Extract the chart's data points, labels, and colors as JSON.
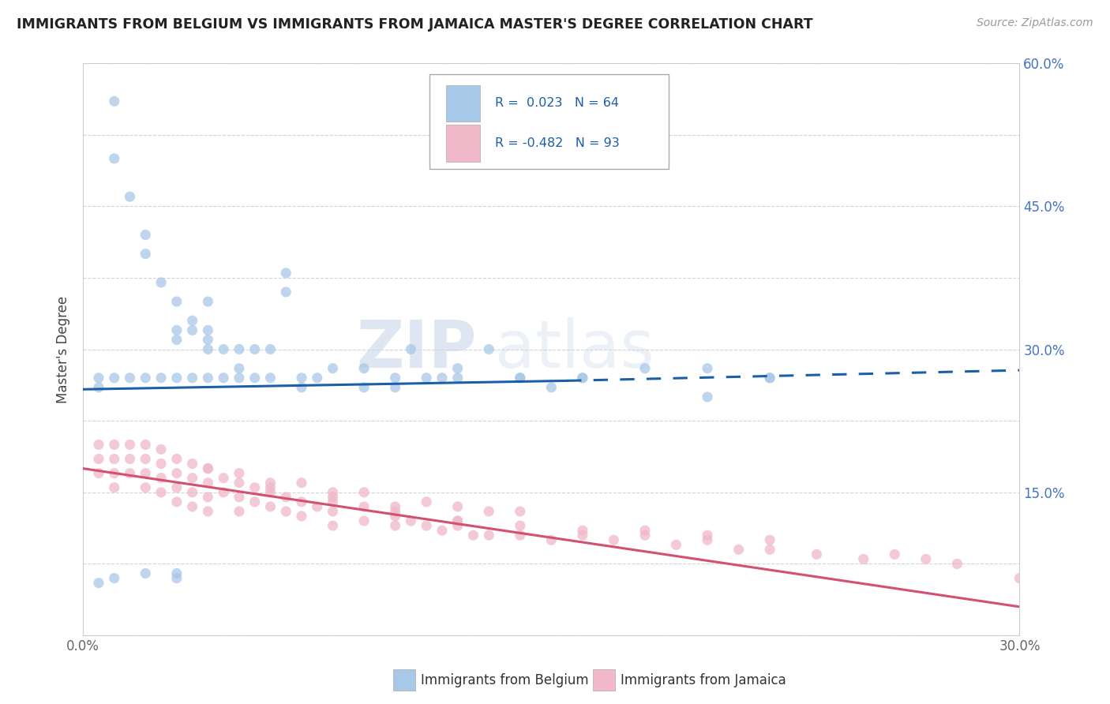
{
  "title": "IMMIGRANTS FROM BELGIUM VS IMMIGRANTS FROM JAMAICA MASTER'S DEGREE CORRELATION CHART",
  "source": "Source: ZipAtlas.com",
  "ylabel": "Master's Degree",
  "xlim": [
    0.0,
    0.3
  ],
  "ylim": [
    0.0,
    0.6
  ],
  "xticks": [
    0.0,
    0.05,
    0.1,
    0.15,
    0.2,
    0.25,
    0.3
  ],
  "xtick_labels": [
    "0.0%",
    "",
    "",
    "",
    "",
    "",
    "30.0%"
  ],
  "ytick_positions": [
    0.0,
    0.075,
    0.15,
    0.225,
    0.3,
    0.375,
    0.45,
    0.525,
    0.6
  ],
  "ytick_labels_right": [
    "",
    "",
    "15.0%",
    "",
    "30.0%",
    "",
    "45.0%",
    "",
    "60.0%"
  ],
  "blue_color": "#a8c8e8",
  "pink_color": "#f0b8c8",
  "blue_line_color": "#1a5fa8",
  "pink_line_color": "#d45070",
  "blue_R": 0.023,
  "blue_N": 64,
  "pink_R": -0.482,
  "pink_N": 93,
  "legend_label_blue": "Immigrants from Belgium",
  "legend_label_pink": "Immigrants from Jamaica",
  "watermark_zip": "ZIP",
  "watermark_atlas": "atlas",
  "background_color": "#ffffff",
  "grid_color": "#d0d0d0",
  "blue_line_start_x": 0.0,
  "blue_line_start_y": 0.258,
  "blue_line_solid_end_x": 0.155,
  "blue_line_solid_end_y": 0.267,
  "blue_line_dash_end_x": 0.3,
  "blue_line_dash_end_y": 0.278,
  "pink_line_start_x": 0.0,
  "pink_line_start_y": 0.175,
  "pink_line_end_x": 0.3,
  "pink_line_end_y": 0.03,
  "blue_scatter_x": [
    0.005,
    0.01,
    0.01,
    0.01,
    0.015,
    0.015,
    0.02,
    0.02,
    0.02,
    0.025,
    0.025,
    0.03,
    0.03,
    0.03,
    0.03,
    0.035,
    0.035,
    0.035,
    0.04,
    0.04,
    0.04,
    0.04,
    0.04,
    0.045,
    0.045,
    0.05,
    0.05,
    0.05,
    0.055,
    0.055,
    0.06,
    0.06,
    0.065,
    0.065,
    0.07,
    0.07,
    0.075,
    0.08,
    0.09,
    0.09,
    0.1,
    0.1,
    0.105,
    0.11,
    0.115,
    0.12,
    0.13,
    0.14,
    0.15,
    0.16,
    0.18,
    0.2,
    0.22,
    0.12,
    0.14,
    0.16,
    0.2,
    0.22,
    0.005,
    0.01,
    0.02,
    0.03,
    0.03,
    0.005
  ],
  "blue_scatter_y": [
    0.27,
    0.56,
    0.5,
    0.27,
    0.46,
    0.27,
    0.42,
    0.4,
    0.27,
    0.37,
    0.27,
    0.35,
    0.32,
    0.31,
    0.27,
    0.33,
    0.32,
    0.27,
    0.35,
    0.32,
    0.31,
    0.3,
    0.27,
    0.3,
    0.27,
    0.3,
    0.28,
    0.27,
    0.3,
    0.27,
    0.3,
    0.27,
    0.38,
    0.36,
    0.27,
    0.26,
    0.27,
    0.28,
    0.28,
    0.26,
    0.27,
    0.26,
    0.3,
    0.27,
    0.27,
    0.28,
    0.3,
    0.27,
    0.26,
    0.27,
    0.28,
    0.25,
    0.27,
    0.27,
    0.27,
    0.27,
    0.28,
    0.27,
    0.055,
    0.06,
    0.065,
    0.065,
    0.06,
    0.26
  ],
  "pink_scatter_x": [
    0.005,
    0.005,
    0.005,
    0.01,
    0.01,
    0.01,
    0.01,
    0.015,
    0.015,
    0.015,
    0.02,
    0.02,
    0.02,
    0.02,
    0.025,
    0.025,
    0.025,
    0.025,
    0.03,
    0.03,
    0.03,
    0.03,
    0.035,
    0.035,
    0.035,
    0.035,
    0.04,
    0.04,
    0.04,
    0.04,
    0.045,
    0.045,
    0.05,
    0.05,
    0.05,
    0.055,
    0.055,
    0.06,
    0.06,
    0.065,
    0.065,
    0.07,
    0.07,
    0.075,
    0.08,
    0.08,
    0.08,
    0.09,
    0.09,
    0.1,
    0.1,
    0.105,
    0.11,
    0.115,
    0.12,
    0.125,
    0.13,
    0.14,
    0.15,
    0.16,
    0.17,
    0.18,
    0.19,
    0.2,
    0.21,
    0.22,
    0.235,
    0.25,
    0.26,
    0.27,
    0.28,
    0.3,
    0.12,
    0.14,
    0.16,
    0.18,
    0.2,
    0.22,
    0.12,
    0.14,
    0.1,
    0.12,
    0.08,
    0.1,
    0.06,
    0.08,
    0.06,
    0.04,
    0.05,
    0.07,
    0.09,
    0.11,
    0.13
  ],
  "pink_scatter_y": [
    0.2,
    0.185,
    0.17,
    0.2,
    0.185,
    0.17,
    0.155,
    0.2,
    0.185,
    0.17,
    0.2,
    0.185,
    0.17,
    0.155,
    0.195,
    0.18,
    0.165,
    0.15,
    0.185,
    0.17,
    0.155,
    0.14,
    0.18,
    0.165,
    0.15,
    0.135,
    0.175,
    0.16,
    0.145,
    0.13,
    0.165,
    0.15,
    0.16,
    0.145,
    0.13,
    0.155,
    0.14,
    0.15,
    0.135,
    0.145,
    0.13,
    0.14,
    0.125,
    0.135,
    0.145,
    0.13,
    0.115,
    0.135,
    0.12,
    0.13,
    0.115,
    0.12,
    0.115,
    0.11,
    0.115,
    0.105,
    0.105,
    0.105,
    0.1,
    0.105,
    0.1,
    0.105,
    0.095,
    0.1,
    0.09,
    0.09,
    0.085,
    0.08,
    0.085,
    0.08,
    0.075,
    0.06,
    0.12,
    0.115,
    0.11,
    0.11,
    0.105,
    0.1,
    0.135,
    0.13,
    0.125,
    0.12,
    0.14,
    0.135,
    0.155,
    0.15,
    0.16,
    0.175,
    0.17,
    0.16,
    0.15,
    0.14,
    0.13
  ]
}
